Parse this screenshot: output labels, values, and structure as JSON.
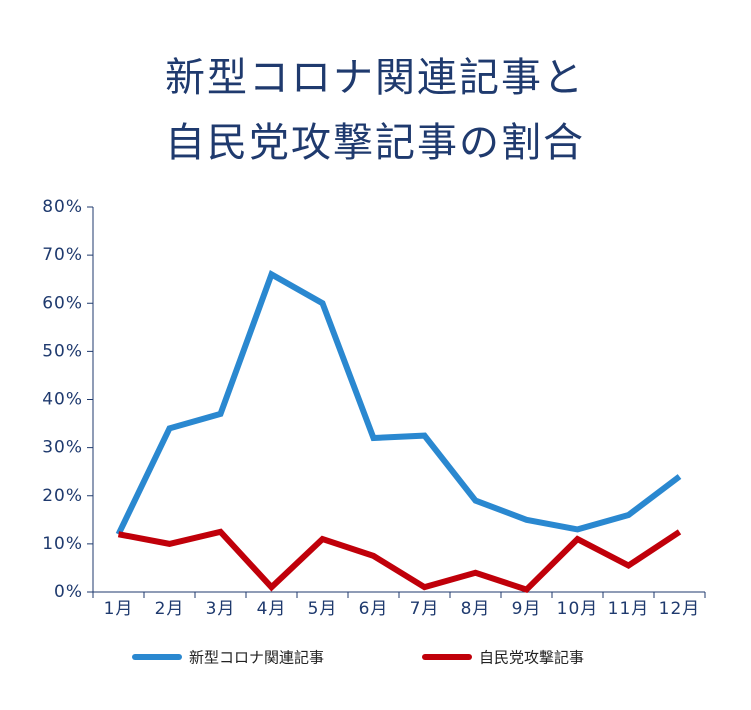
{
  "chart_data": {
    "type": "line",
    "title": [
      "新型コロナ関連記事と",
      "自民党攻撃記事の割合"
    ],
    "categories": [
      "1月",
      "2月",
      "3月",
      "4月",
      "5月",
      "6月",
      "7月",
      "8月",
      "9月",
      "10月",
      "11月",
      "12月"
    ],
    "series": [
      {
        "name": "新型コロナ関連記事",
        "color": "#2a88d0",
        "values": [
          12,
          34,
          37,
          66,
          60,
          32,
          32.5,
          19,
          15,
          13,
          16,
          24
        ]
      },
      {
        "name": "自民党攻撃記事",
        "color": "#c0000a",
        "values": [
          12,
          10,
          12.5,
          1,
          11,
          7.5,
          1,
          4,
          0.5,
          11,
          5.5,
          12.5
        ]
      }
    ],
    "ylim": [
      0,
      80
    ],
    "yticks": [
      {
        "value": 0,
        "label": "0%"
      },
      {
        "value": 10,
        "label": "10%"
      },
      {
        "value": 20,
        "label": "20%"
      },
      {
        "value": 30,
        "label": "30%"
      },
      {
        "value": 40,
        "label": "40%"
      },
      {
        "value": 50,
        "label": "50%"
      },
      {
        "value": 60,
        "label": "60%"
      },
      {
        "value": 70,
        "label": "70%"
      },
      {
        "value": 80,
        "label": "80%"
      }
    ],
    "grid": false
  }
}
